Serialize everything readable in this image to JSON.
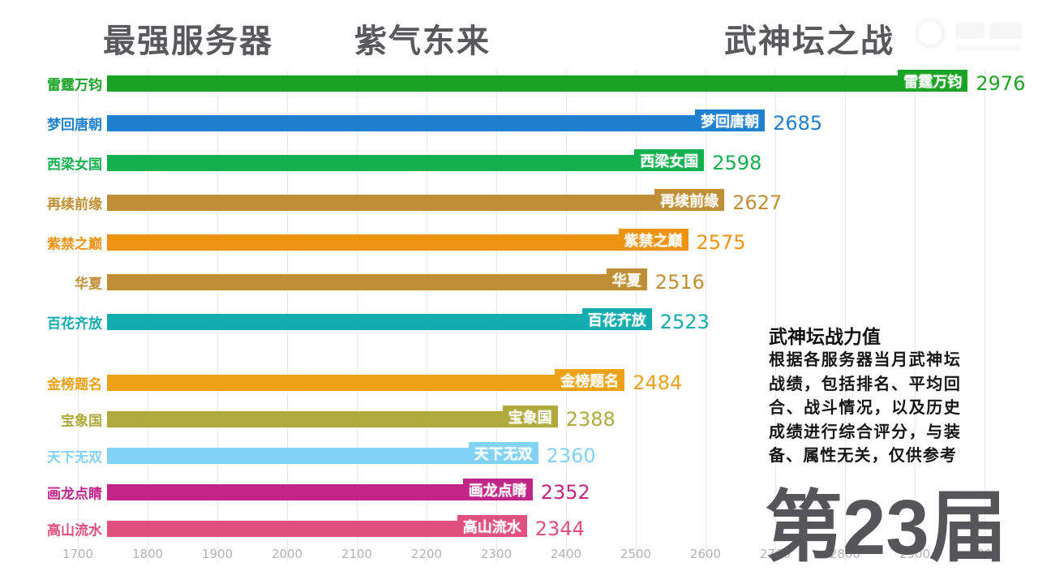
{
  "header": {
    "titles": [
      "最强服务器",
      "紫气东来",
      "武神坛之战"
    ]
  },
  "watermark": {
    "description": "faint-video-platform-logo",
    "color": "#f0f0f0"
  },
  "chart_data": {
    "type": "bar",
    "orientation": "horizontal",
    "title": "武神坛之战",
    "xlabel": "",
    "ylabel": "",
    "xlim": [
      1700,
      3000
    ],
    "x_ticks": [
      1700,
      1800,
      1900,
      2000,
      2100,
      2200,
      2300,
      2400,
      2500,
      2600,
      2700,
      2800,
      2900,
      3000
    ],
    "grid": true,
    "legend": "none",
    "bars": [
      {
        "label": "雷霆万钧",
        "value": 2976,
        "color": "#1aa324"
      },
      {
        "label": "梦回唐朝",
        "value": 2685,
        "color": "#2080d0"
      },
      {
        "label": "西梁女国",
        "value": 2598,
        "color": "#12b04e"
      },
      {
        "label": "再续前缘",
        "value": 2627,
        "color": "#c08f35"
      },
      {
        "label": "紫禁之巅",
        "value": 2575,
        "color": "#ee9311"
      },
      {
        "label": "华夏",
        "value": 2516,
        "color": "#c08f35"
      },
      {
        "label": "百花齐放",
        "value": 2523,
        "color": "#12acae"
      },
      {
        "label": "金榜题名",
        "value": 2484,
        "color": "#eda117",
        "gap_before": true
      },
      {
        "label": "宝象国",
        "value": 2388,
        "color": "#b0aa3c"
      },
      {
        "label": "天下无双",
        "value": 2360,
        "color": "#82d2f5"
      },
      {
        "label": "画龙点睛",
        "value": 2352,
        "color": "#c12587"
      },
      {
        "label": "高山流水",
        "value": 2344,
        "color": "#e04f7d"
      }
    ]
  },
  "annotation": {
    "title": "武神坛战力值",
    "body": "根据各服务器当月武神坛战绩，包括排名、平均回合、战斗情况，以及历史成绩进行综合评分，与装备、属性无关，仅供参考"
  },
  "edition": {
    "label": "第23届"
  }
}
